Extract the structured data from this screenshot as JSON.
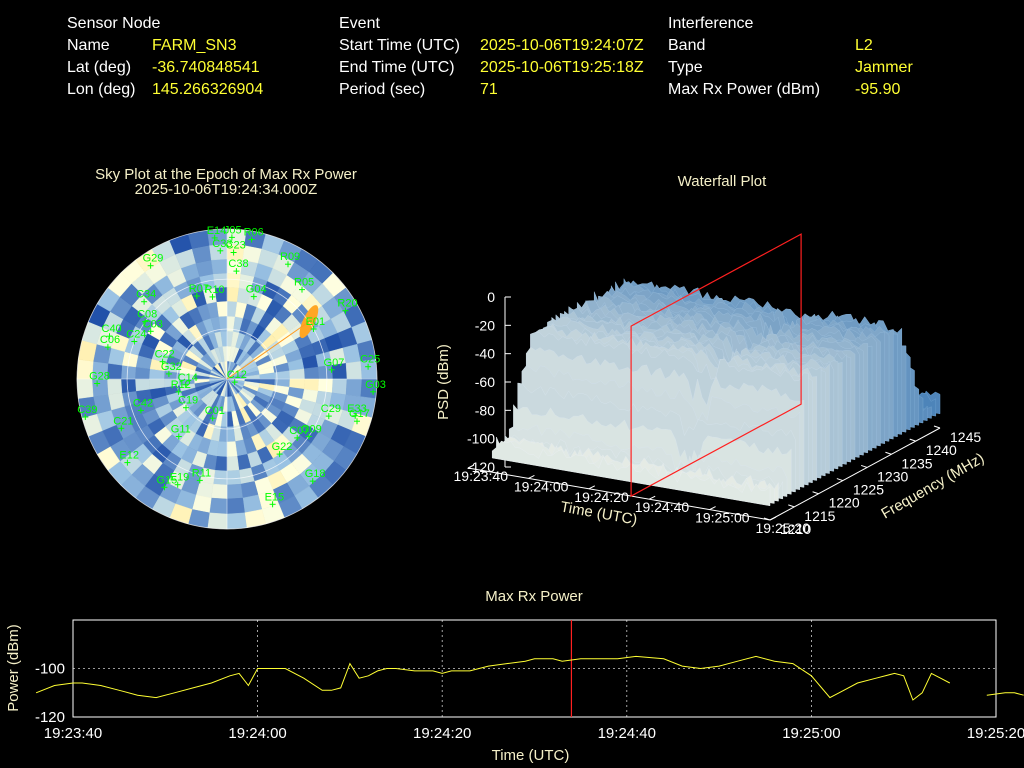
{
  "header": {
    "sensor": {
      "title": "Sensor Node",
      "name_label": "Name",
      "name": "FARM_SN3",
      "lat_label": "Lat (deg)",
      "lat": "-36.740848541",
      "lon_label": "Lon (deg)",
      "lon": "145.266326904"
    },
    "event": {
      "title": "Event",
      "start_label": "Start Time (UTC)",
      "start": "2025-10-06T19:24:07Z",
      "end_label": "End Time (UTC)",
      "end": "2025-10-06T19:25:18Z",
      "period_label": "Period (sec)",
      "period": "71"
    },
    "interference": {
      "title": "Interference",
      "band_label": "Band",
      "band": "L2",
      "type_label": "Type",
      "type": "Jammer",
      "maxpow_label": "Max Rx Power (dBm)",
      "maxpow": "-95.90"
    }
  },
  "chart_data": [
    {
      "type": "scatter",
      "title": "Sky Plot at the Epoch of Max Rx Power",
      "subtitle": "2025-10-06T19:24:34.000Z",
      "satellites": [
        {
          "id": "E14",
          "az": -5,
          "el": 5
        },
        {
          "id": "J05",
          "az": 2,
          "el": 5
        },
        {
          "id": "R06",
          "az": 10,
          "el": 5
        },
        {
          "id": "G29",
          "az": -34,
          "el": 8
        },
        {
          "id": "C33",
          "az": -3,
          "el": 13
        },
        {
          "id": "C23",
          "az": 3,
          "el": 14
        },
        {
          "id": "R09",
          "az": 28,
          "el": 12
        },
        {
          "id": "C38",
          "az": 5,
          "el": 25
        },
        {
          "id": "C34",
          "az": -47,
          "el": 22
        },
        {
          "id": "C08",
          "az": -55,
          "el": 30
        },
        {
          "id": "C03",
          "az": -58,
          "el": 36
        },
        {
          "id": "R07",
          "az": -20,
          "el": 37
        },
        {
          "id": "R10",
          "az": -10,
          "el": 40
        },
        {
          "id": "G04",
          "az": 18,
          "el": 38
        },
        {
          "id": "R05",
          "az": 40,
          "el": 20
        },
        {
          "id": "R20",
          "az": 60,
          "el": 8
        },
        {
          "id": "C40",
          "az": -70,
          "el": 15
        },
        {
          "id": "E01",
          "az": 60,
          "el": 30
        },
        {
          "id": "C06",
          "az": -75,
          "el": 16
        },
        {
          "id": "C24",
          "az": -68,
          "el": 30
        },
        {
          "id": "C22",
          "az": -75,
          "el": 50
        },
        {
          "id": "C39",
          "az": -105,
          "el": 2
        },
        {
          "id": "G28",
          "az": -92,
          "el": 12
        },
        {
          "id": "C14",
          "az": -98,
          "el": 65
        },
        {
          "id": "R12",
          "az": -105,
          "el": 60
        },
        {
          "id": "G32",
          "az": -85,
          "el": 55
        },
        {
          "id": "C21",
          "az": -115,
          "el": 20
        },
        {
          "id": "C42",
          "az": -110,
          "el": 35
        },
        {
          "id": "G07",
          "az": 85,
          "el": 27
        },
        {
          "id": "C25",
          "az": 85,
          "el": 5
        },
        {
          "id": "G03",
          "az": 95,
          "el": 2
        },
        {
          "id": "G17",
          "az": 108,
          "el": 8
        },
        {
          "id": "C29",
          "az": 110,
          "el": 25
        },
        {
          "id": "E33",
          "az": 106,
          "el": 10
        },
        {
          "id": "G18",
          "az": 140,
          "el": 10
        },
        {
          "id": "C07",
          "az": 130,
          "el": 35
        },
        {
          "id": "G09",
          "az": 125,
          "el": 30
        },
        {
          "id": "C12",
          "az": 112,
          "el": 85
        },
        {
          "id": "G22",
          "az": 145,
          "el": 35
        },
        {
          "id": "E15",
          "az": 160,
          "el": 10
        },
        {
          "id": "E12",
          "az": -130,
          "el": 12
        },
        {
          "id": "G15",
          "az": -150,
          "el": 15
        },
        {
          "id": "E19",
          "az": -155,
          "el": 20
        },
        {
          "id": "R11",
          "az": -165,
          "el": 27
        },
        {
          "id": "G11",
          "az": -140,
          "el": 45
        },
        {
          "id": "C19",
          "az": -125,
          "el": 60
        },
        {
          "id": "C01",
          "az": -160,
          "el": 65
        }
      ],
      "max_rx_power_direction": {
        "az": 55,
        "el": 30
      },
      "gradient_colors": [
        "#1f4fa8",
        "#ffffe0",
        "#ffa624"
      ]
    },
    {
      "type": "area",
      "title": "Waterfall Plot",
      "xlabel": "Time (UTC)",
      "ylabel": "Frequency (MHz)",
      "zlabel": "PSD (dBm)",
      "x_ticks": [
        "19:23:40",
        "19:24:00",
        "19:24:20",
        "19:24:40",
        "19:25:00",
        "19:25:20"
      ],
      "y_ticks": [
        1210,
        1215,
        1220,
        1225,
        1230,
        1235,
        1240,
        1245
      ],
      "z_ticks": [
        0,
        -20,
        -40,
        -60,
        -80,
        -100,
        -120
      ],
      "xlim": [
        "19:23:40",
        "19:25:20"
      ],
      "ylim": [
        1210,
        1245
      ],
      "zlim": [
        -120,
        0
      ],
      "surface_level_dBm": -35,
      "noise_floor_dBm": -100,
      "band_mhz": [
        1213,
        1242
      ],
      "marker_time": "19:24:34",
      "marker_color": "#ff2020"
    },
    {
      "type": "line",
      "title": "Max Rx Power",
      "xlabel": "Time (UTC)",
      "ylabel": "Power (dBm)",
      "x_ticks": [
        "19:23:40",
        "19:24:00",
        "19:24:20",
        "19:24:40",
        "19:25:00",
        "19:25:20"
      ],
      "y_ticks": [
        -100,
        -120
      ],
      "xlim_sec": [
        0,
        100
      ],
      "ylim": [
        -120,
        -80
      ],
      "grid": true,
      "marker_sec": 54,
      "series": [
        {
          "segments": [
            [
              [
                -4,
                -110
              ],
              [
                -2,
                -107
              ],
              [
                0,
                -106
              ],
              [
                1,
                -106
              ],
              [
                3,
                -107
              ],
              [
                5,
                -109
              ],
              [
                7,
                -111
              ],
              [
                9,
                -112
              ],
              [
                11,
                -110
              ],
              [
                13,
                -108
              ],
              [
                15,
                -106
              ],
              [
                17,
                -103
              ],
              [
                18,
                -102
              ],
              [
                19,
                -107
              ],
              [
                20,
                -100
              ],
              [
                21,
                -100
              ],
              [
                22,
                -100
              ],
              [
                23,
                -100
              ],
              [
                25,
                -104
              ],
              [
                27,
                -109
              ],
              [
                28,
                -109
              ],
              [
                29,
                -108
              ],
              [
                30,
                -98
              ],
              [
                31,
                -104
              ],
              [
                32,
                -103
              ],
              [
                33,
                -101
              ],
              [
                34,
                -100
              ],
              [
                35,
                -100
              ],
              [
                37,
                -101
              ],
              [
                39,
                -101
              ],
              [
                40,
                -102
              ],
              [
                41,
                -101
              ],
              [
                43,
                -101
              ],
              [
                45,
                -99
              ],
              [
                47,
                -98
              ],
              [
                49,
                -97
              ],
              [
                50,
                -96
              ],
              [
                52,
                -96
              ],
              [
                53,
                -97
              ],
              [
                55,
                -96
              ],
              [
                57,
                -96
              ],
              [
                59,
                -96
              ],
              [
                61,
                -95
              ],
              [
                64,
                -96
              ],
              [
                66,
                -99
              ],
              [
                68,
                -100
              ],
              [
                70,
                -99
              ],
              [
                72,
                -97
              ],
              [
                74,
                -95
              ],
              [
                76,
                -97
              ],
              [
                78,
                -98
              ],
              [
                80,
                -103
              ],
              [
                82,
                -112
              ],
              [
                83,
                -110
              ],
              [
                85,
                -106
              ],
              [
                87,
                -104
              ],
              [
                89,
                -102
              ],
              [
                90,
                -103
              ],
              [
                91,
                -113
              ],
              [
                92,
                -110
              ],
              [
                93,
                -102
              ],
              [
                94,
                -104
              ],
              [
                95,
                -106
              ]
            ],
            [
              [
                99,
                -111
              ],
              [
                101,
                -110
              ],
              [
                102,
                -110
              ],
              [
                103,
                -111
              ]
            ]
          ]
        }
      ]
    }
  ]
}
